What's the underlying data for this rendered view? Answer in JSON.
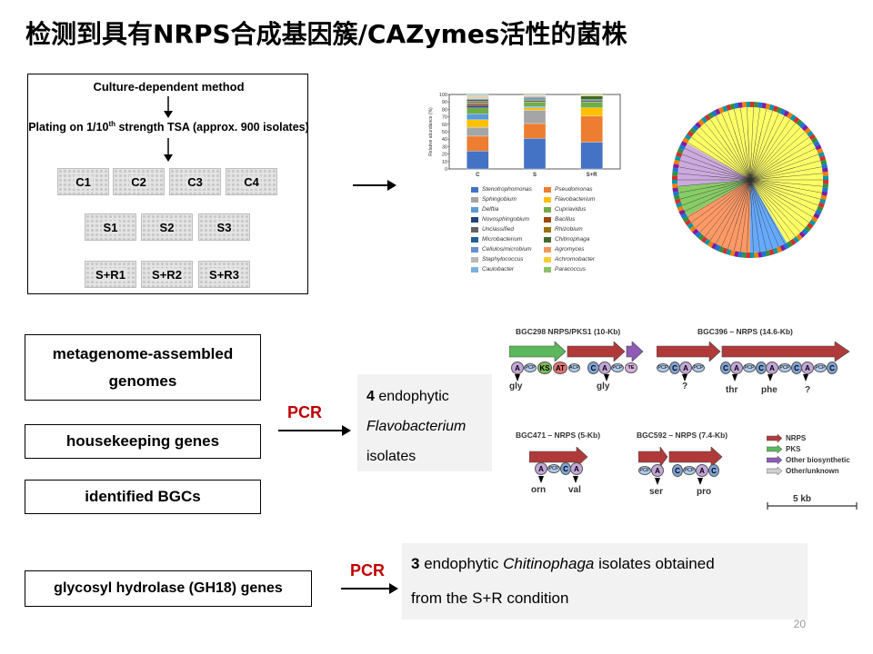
{
  "slide": {
    "title": "检测到具有NRPS合成基因簇/CAZymes活性的菌株",
    "page_number": "20"
  },
  "method_diagram": {
    "heading": "Culture-dependent method",
    "plating_text_pre": "Plating on 1/10",
    "plating_text_sup": "th",
    "plating_text_post": " strength TSA (approx. 900 isolates)",
    "plates_row1": [
      "C1",
      "C2",
      "C3",
      "C4"
    ],
    "plates_row2": [
      "S1",
      "S2",
      "S3"
    ],
    "plates_row3": [
      "S+R1",
      "S+R2",
      "S+R3"
    ]
  },
  "bar_chart": {
    "y_axis_label": "Relative abundance (%)",
    "y_ticks": [
      "100",
      "90",
      "80",
      "70",
      "60",
      "50",
      "40",
      "30",
      "20",
      "10",
      "0"
    ],
    "legend": [
      {
        "label": "Stenotrophomonas",
        "color": "#4472c4"
      },
      {
        "label": "Pseudomonas",
        "color": "#ed7d31"
      },
      {
        "label": "Sphingobium",
        "color": "#a5a5a5"
      },
      {
        "label": "Flavobacterium",
        "color": "#ffc000"
      },
      {
        "label": "Delftia",
        "color": "#5b9bd5"
      },
      {
        "label": "Cupriavidus",
        "color": "#70ad47"
      },
      {
        "label": "Novosphingobium",
        "color": "#264478"
      },
      {
        "label": "Bacillus",
        "color": "#9e480e"
      },
      {
        "label": "Unclassified",
        "color": "#636363"
      },
      {
        "label": "Rhizobium",
        "color": "#997300"
      },
      {
        "label": "Microbacterium",
        "color": "#255e91"
      },
      {
        "label": "Chitinophaga",
        "color": "#43682b"
      },
      {
        "label": "Cellulosimicrobium",
        "color": "#698ed0"
      },
      {
        "label": "Agromyces",
        "color": "#f1975a"
      },
      {
        "label": "Staphylococcus",
        "color": "#b7b7b7"
      },
      {
        "label": "Achromobacter",
        "color": "#ffcd33"
      },
      {
        "label": "Caulobacter",
        "color": "#7cafdd"
      },
      {
        "label": "Paracoccus",
        "color": "#8cc168"
      }
    ]
  },
  "chart_data": {
    "type": "bar",
    "stacked": true,
    "categories": [
      "C",
      "S",
      "S+R"
    ],
    "ylim": [
      0,
      100
    ],
    "ylabel": "Relative abundance (%)",
    "series": [
      {
        "name": "Stenotrophomonas",
        "values": [
          24,
          41,
          36
        ]
      },
      {
        "name": "Pseudomonas",
        "values": [
          20,
          20,
          35
        ]
      },
      {
        "name": "Sphingobium",
        "values": [
          12,
          18,
          0
        ]
      },
      {
        "name": "Flavobacterium",
        "values": [
          10,
          3,
          11
        ]
      },
      {
        "name": "Delftia",
        "values": [
          8,
          2,
          0
        ]
      },
      {
        "name": "Cupriavidus",
        "values": [
          8,
          6,
          8
        ]
      },
      {
        "name": "Novosphingobium",
        "values": [
          3,
          0,
          0
        ]
      },
      {
        "name": "Bacillus",
        "values": [
          2,
          0,
          0
        ]
      },
      {
        "name": "Unclassified",
        "values": [
          2,
          2,
          2
        ]
      },
      {
        "name": "Rhizobium",
        "values": [
          2,
          1,
          0
        ]
      },
      {
        "name": "Microbacterium",
        "values": [
          2,
          2,
          1
        ]
      },
      {
        "name": "Chitinophaga",
        "values": [
          1,
          1,
          5
        ]
      },
      {
        "name": "Cellulosimicrobium",
        "values": [
          1,
          1,
          0
        ]
      },
      {
        "name": "Agromyces",
        "values": [
          1,
          0,
          0
        ]
      },
      {
        "name": "Staphylococcus",
        "values": [
          1,
          1,
          0
        ]
      },
      {
        "name": "Achromobacter",
        "values": [
          1,
          1,
          1
        ]
      },
      {
        "name": "Caulobacter",
        "values": [
          1,
          1,
          0
        ]
      },
      {
        "name": "Paracoccus",
        "values": [
          1,
          0,
          1
        ]
      }
    ]
  },
  "left_boxes": {
    "box1": "metagenome-assembled genomes",
    "box2": "housekeeping genes",
    "box3": "identified BGCs",
    "box4": "glycosyl hydrolase (GH18) genes"
  },
  "pcr_label_1": "PCR",
  "pcr_label_2": "PCR",
  "result1": {
    "count": "4",
    "word": " endophytic",
    "genus": "Flavobacterium",
    "tail": "isolates"
  },
  "result2": {
    "count": "3",
    "pre": " endophytic ",
    "genus": "Chitinophaga",
    "post": " isolates obtained",
    "line2": "from the S+R condition"
  },
  "bgc_diagram": {
    "bgc298_title": "BGC298 NRPS/PKS1 (10-Kb)",
    "bgc396_title": "BGC396 – NRPS  (14.6-Kb)",
    "bgc471_title": "BGC471 – NRPS  (5-Kb)",
    "bgc592_title": "BGC592 – NRPS  (7.4-Kb)",
    "aa_298": [
      "gly",
      "gly"
    ],
    "aa_396": [
      "?",
      "thr",
      "phe",
      "?"
    ],
    "aa_471": [
      "orn",
      "val"
    ],
    "aa_592": [
      "ser",
      "pro"
    ],
    "legend": [
      {
        "label": "NRPS",
        "color": "#b03a3a"
      },
      {
        "label": "PKS",
        "color": "#5cb85c"
      },
      {
        "label": "Other biosynthetic",
        "color": "#8e5bb5"
      },
      {
        "label": "Other/unknown",
        "color": "#cfcfcf"
      }
    ],
    "scale_label": "5 kb",
    "colors": {
      "nrps": "#b03a3a",
      "pks": "#5cb85c",
      "other": "#8e5bb5",
      "A": "#c3a6d9",
      "C": "#7fa3d6",
      "PCP": "#aec9ea",
      "KS": "#7dbb5a",
      "AT": "#e57373",
      "TE": "#d9b3e0"
    }
  },
  "tree": {
    "colors": [
      "#ffff66",
      "#ccaadd",
      "#88cc66",
      "#ff9966",
      "#66aaff"
    ]
  }
}
